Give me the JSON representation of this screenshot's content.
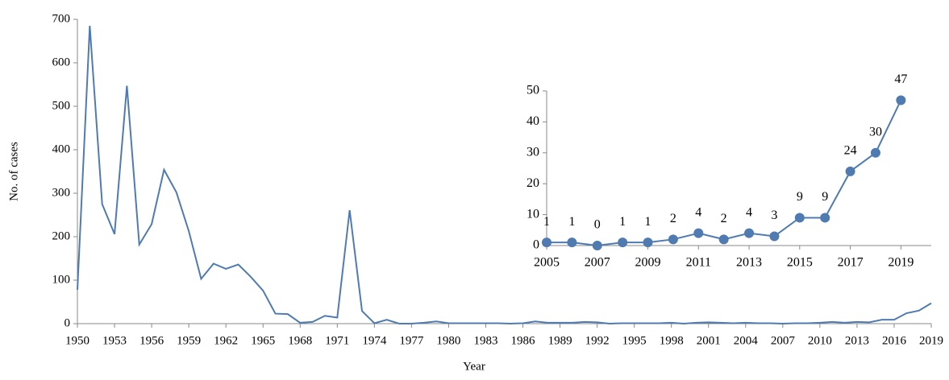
{
  "chart_data": [
    {
      "type": "line",
      "x_label": "Year",
      "y_label": "No. of cases",
      "x": [
        1950,
        1951,
        1952,
        1953,
        1954,
        1955,
        1956,
        1957,
        1958,
        1959,
        1960,
        1961,
        1962,
        1963,
        1964,
        1965,
        1966,
        1967,
        1968,
        1969,
        1970,
        1971,
        1972,
        1973,
        1974,
        1975,
        1976,
        1977,
        1978,
        1979,
        1980,
        1981,
        1982,
        1983,
        1984,
        1985,
        1986,
        1987,
        1988,
        1989,
        1990,
        1991,
        1992,
        1993,
        1994,
        1995,
        1996,
        1997,
        1998,
        1999,
        2000,
        2001,
        2002,
        2003,
        2004,
        2005,
        2006,
        2007,
        2008,
        2009,
        2010,
        2011,
        2012,
        2013,
        2014,
        2015,
        2016,
        2017,
        2018,
        2019
      ],
      "series": [
        {
          "name": "Cases",
          "color": "#4f7bb0",
          "values": [
            78,
            685,
            275,
            206,
            547,
            182,
            229,
            354,
            302,
            213,
            103,
            138,
            126,
            136,
            108,
            76,
            23,
            22,
            2,
            4,
            18,
            14,
            261,
            29,
            1,
            9,
            0,
            0,
            2,
            5,
            1,
            1,
            1,
            1,
            1,
            0,
            1,
            5,
            2,
            2,
            2,
            4,
            3,
            0,
            1,
            1,
            1,
            1,
            2,
            0,
            2,
            3,
            2,
            1,
            2,
            1,
            1,
            0,
            1,
            1,
            2,
            4,
            2,
            4,
            3,
            9,
            9,
            24,
            30,
            47
          ]
        }
      ],
      "xlim": [
        1950,
        2019
      ],
      "xticks": [
        1950,
        1953,
        1956,
        1959,
        1962,
        1965,
        1968,
        1971,
        1974,
        1977,
        1980,
        1983,
        1986,
        1989,
        1992,
        1995,
        1998,
        2001,
        2004,
        2007,
        2010,
        2013,
        2016,
        2019
      ],
      "ylim": [
        0,
        700
      ],
      "yticks": [
        0,
        100,
        200,
        300,
        400,
        500,
        600,
        700
      ],
      "markers": false,
      "data_labels": false
    },
    {
      "type": "line",
      "x": [
        2005,
        2006,
        2007,
        2008,
        2009,
        2010,
        2011,
        2012,
        2013,
        2014,
        2015,
        2016,
        2017,
        2018,
        2019
      ],
      "series": [
        {
          "name": "Cases",
          "color": "#4f7bb0",
          "values": [
            1,
            1,
            0,
            1,
            1,
            2,
            4,
            2,
            4,
            3,
            9,
            9,
            24,
            30,
            47
          ]
        }
      ],
      "xlim": [
        2005,
        2020.2
      ],
      "xticks": [
        2005,
        2007,
        2009,
        2011,
        2013,
        2015,
        2017,
        2019
      ],
      "ylim": [
        0,
        50
      ],
      "yticks": [
        0,
        10,
        20,
        30,
        40,
        50
      ],
      "markers": true,
      "data_labels": true
    }
  ]
}
